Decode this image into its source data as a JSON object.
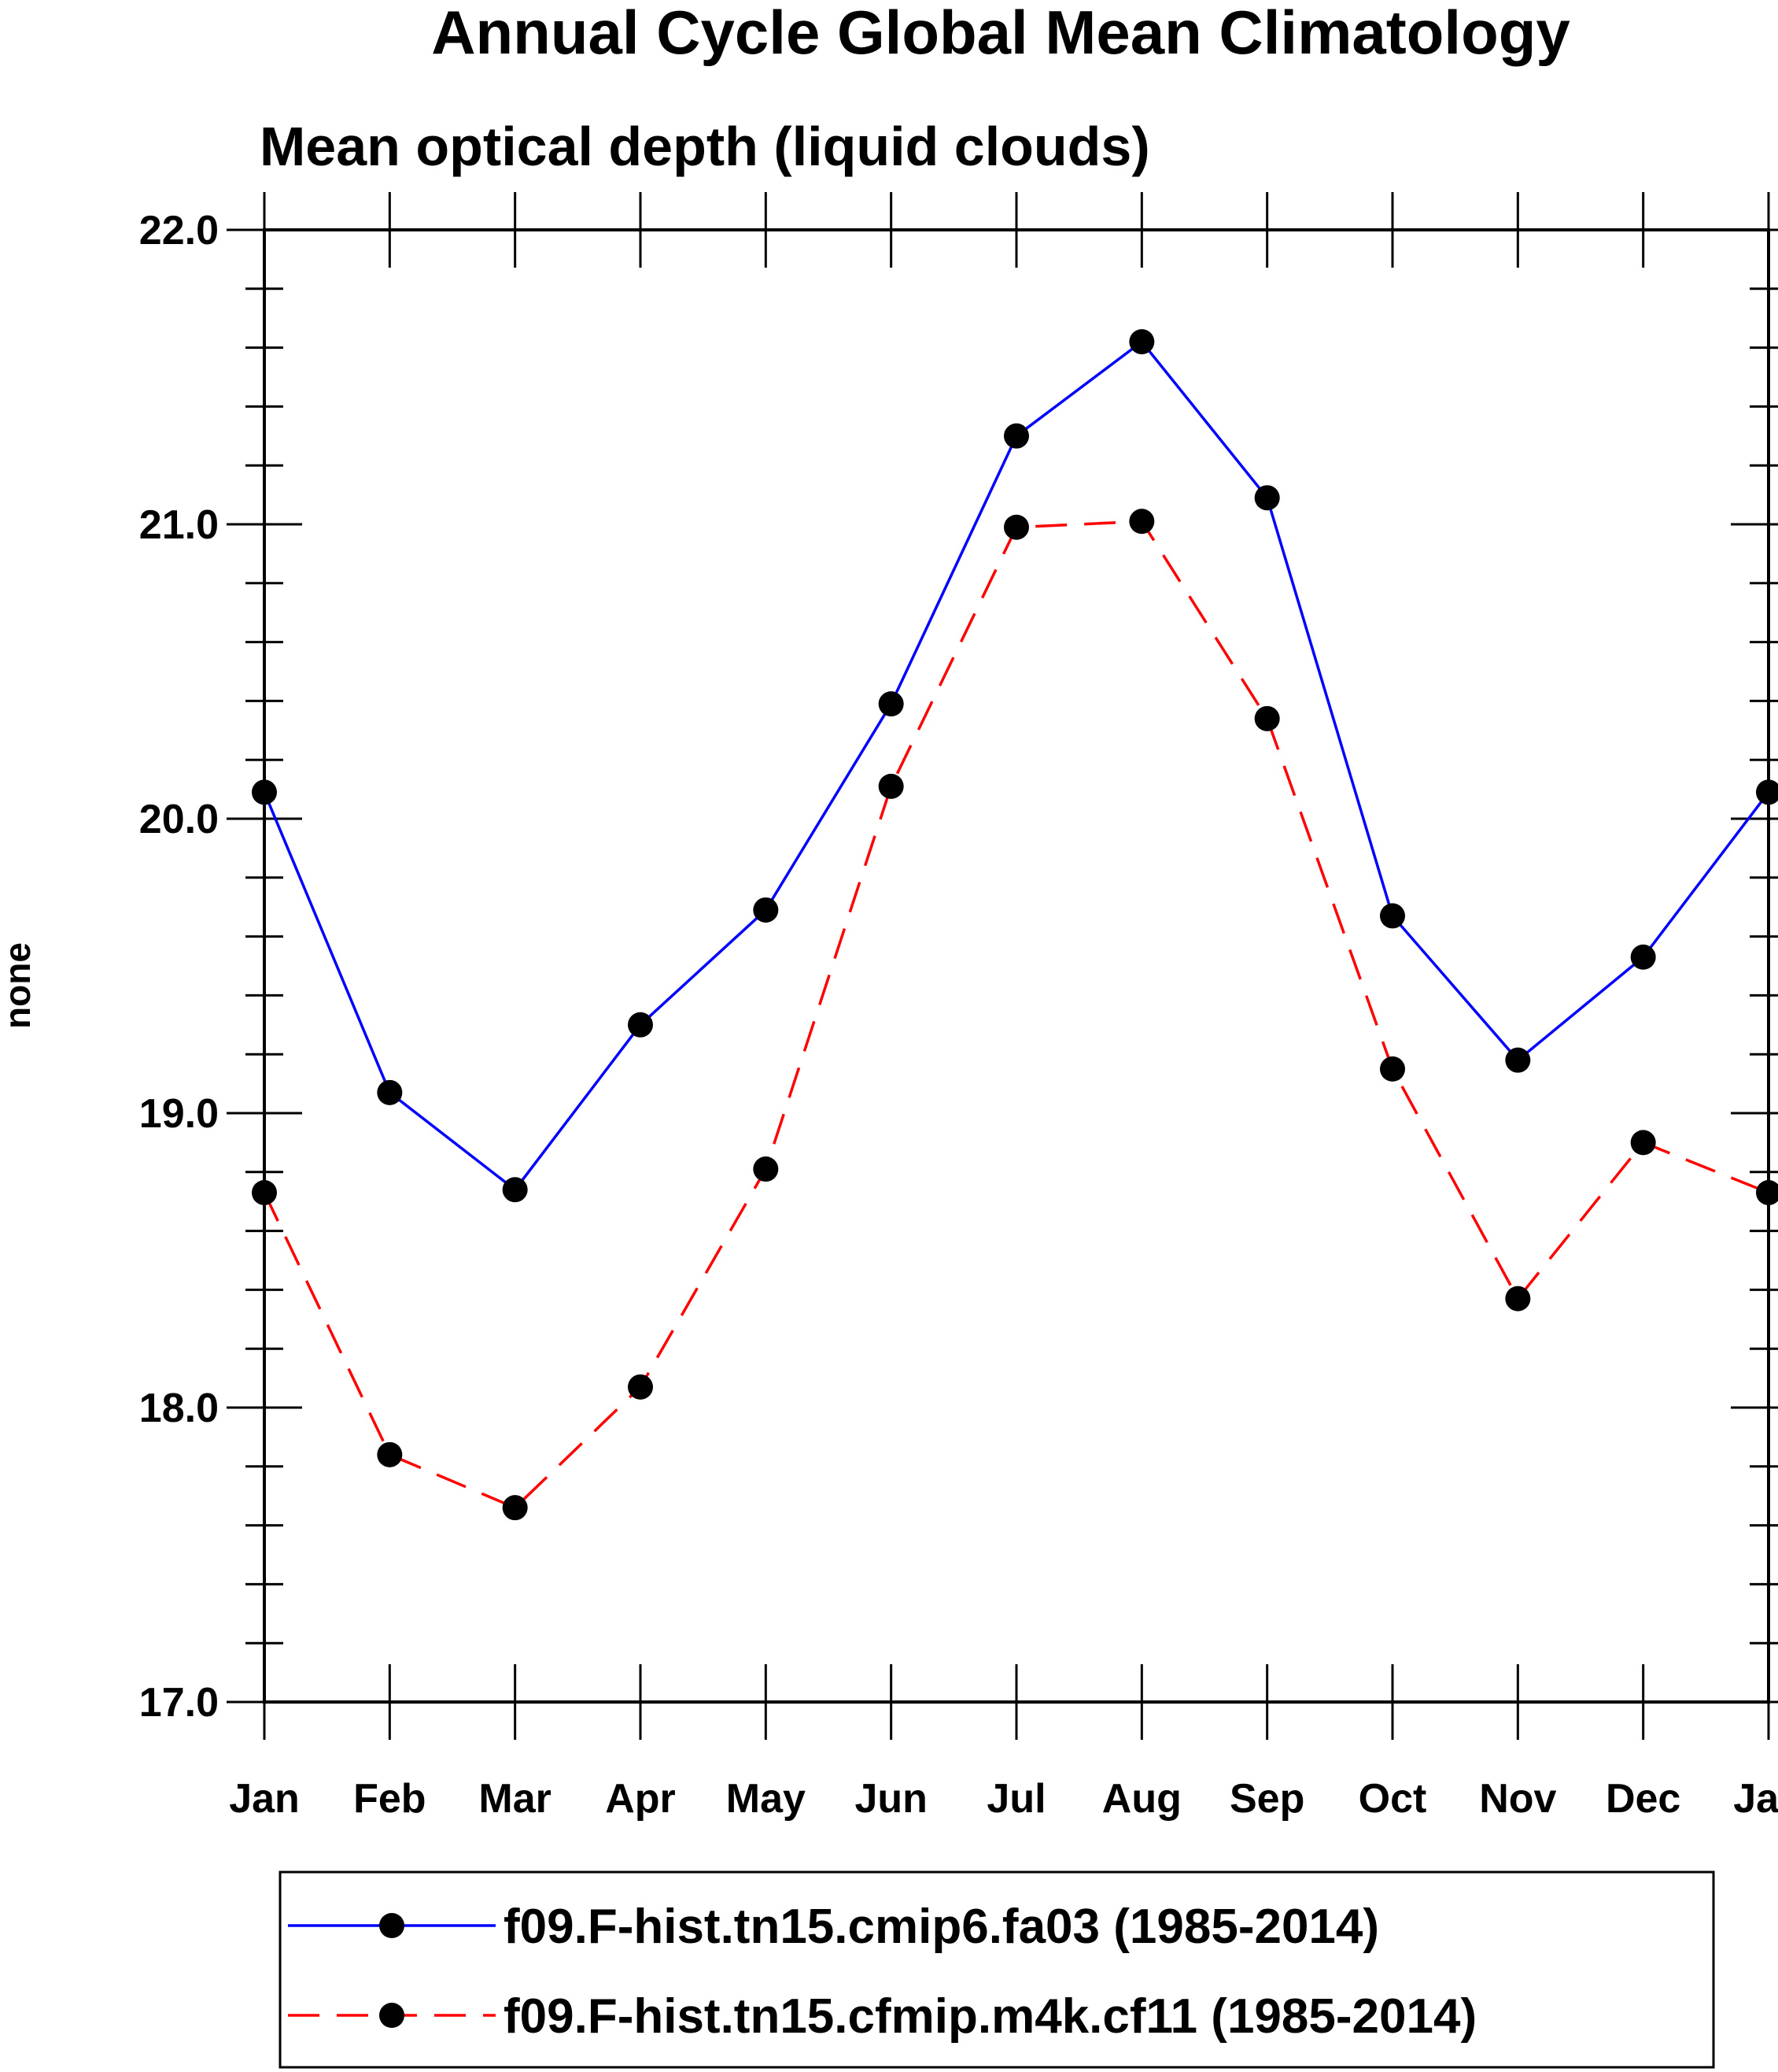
{
  "chart_data": {
    "type": "line",
    "title": "Annual Cycle Global Mean Climatology",
    "subtitle": "Mean optical depth (liquid clouds)",
    "xlabel": "",
    "ylabel": "none",
    "categories": [
      "Jan",
      "Feb",
      "Mar",
      "Apr",
      "May",
      "Jun",
      "Jul",
      "Aug",
      "Sep",
      "Oct",
      "Nov",
      "Dec",
      "Jan"
    ],
    "ylim": [
      17.0,
      22.0
    ],
    "yticks": [
      "17.0",
      "18.0",
      "19.0",
      "20.0",
      "21.0",
      "22.0"
    ],
    "grid": false,
    "legend_position": "bottom",
    "series": [
      {
        "name": "f09.F-hist.tn15.cmip6.fa03 (1985-2014)",
        "color": "#0000ff",
        "dash": "solid",
        "values": [
          20.09,
          19.07,
          18.74,
          19.3,
          19.69,
          20.39,
          21.3,
          21.62,
          21.09,
          19.67,
          19.18,
          19.53,
          20.09
        ]
      },
      {
        "name": "f09.F-hist.tn15.cfmip.m4k.cf11 (1985-2014)",
        "color": "#ff0000",
        "dash": "dashed",
        "values": [
          18.73,
          17.84,
          17.66,
          18.07,
          18.81,
          20.11,
          20.99,
          21.01,
          20.34,
          19.15,
          18.37,
          18.9,
          18.73
        ]
      }
    ]
  }
}
